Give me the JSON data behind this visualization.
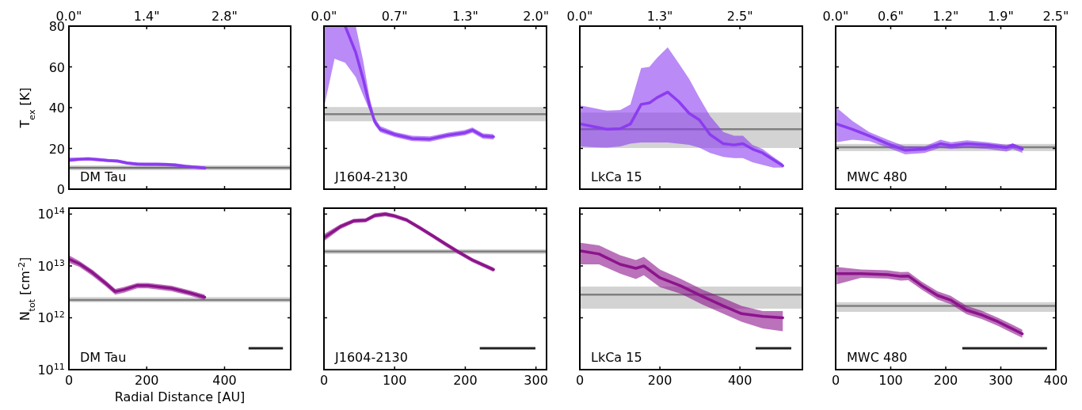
{
  "chart_data": [
    {
      "type": "line",
      "ylabel": "T$_{ex}$ [K]",
      "annotations": [
        "DM Tau"
      ],
      "xlim": [
        0,
        3.99
      ],
      "xticks": [
        {
          "value": 0,
          "label": "0.0\""
        },
        {
          "value": 1.4,
          "label": "1.4\""
        },
        {
          "value": 2.8,
          "label": "2.8\""
        }
      ],
      "ylim": [
        0,
        80
      ],
      "yticks": [
        0,
        20,
        40,
        60,
        80
      ],
      "x": [
        0,
        0.18,
        0.35,
        0.53,
        0.7,
        0.88,
        1.05,
        1.23,
        1.4,
        1.58,
        1.75,
        1.93,
        2.1,
        2.28,
        2.45
      ],
      "series": [
        {
          "color": "#8c3cf0",
          "values": [
            14.3,
            14.7,
            14.9,
            14.5,
            14.1,
            13.8,
            12.8,
            12.3,
            12.2,
            12.2,
            12.1,
            11.8,
            11.2,
            10.8,
            10.4
          ],
          "lower": [
            13.3,
            13.9,
            14.1,
            13.7,
            13.3,
            13.0,
            12.0,
            11.5,
            11.4,
            11.4,
            11.3,
            11.0,
            10.4,
            10.0,
            9.6
          ],
          "upper": [
            15.5,
            15.5,
            15.7,
            15.3,
            14.9,
            14.6,
            13.6,
            13.1,
            13.0,
            13.0,
            12.9,
            12.6,
            12.0,
            11.6,
            11.2
          ]
        }
      ],
      "ref_lines": [
        {
          "axis": "y",
          "value": 10.5,
          "color": "#707070"
        }
      ],
      "bands": [
        {
          "axis": "y",
          "from": 9.3,
          "to": 11.7,
          "color": "#c8c8c8"
        }
      ]
    },
    {
      "type": "line",
      "annotations": [
        "J1604-2130"
      ],
      "xlim": [
        0,
        2.1
      ],
      "xticks": [
        {
          "value": 0,
          "label": "0.0\""
        },
        {
          "value": 0.667,
          "label": "0.7\""
        },
        {
          "value": 1.333,
          "label": "1.3\""
        },
        {
          "value": 2.0,
          "label": "2.0\""
        }
      ],
      "ylim": [
        0,
        80
      ],
      "yticks": [
        {
          "value": 0,
          "label": null
        },
        {
          "value": 20,
          "label": null
        },
        {
          "value": 40,
          "label": null
        },
        {
          "value": 60,
          "label": null
        },
        {
          "value": 80,
          "label": null
        }
      ],
      "tick_labels": "x",
      "x": [
        0,
        0.1,
        0.2,
        0.3,
        0.37,
        0.43,
        0.48,
        0.53,
        0.67,
        0.83,
        1.0,
        1.17,
        1.33,
        1.4,
        1.5,
        1.6
      ],
      "series": [
        {
          "color": "#8c3cf0",
          "values": [
            null,
            null,
            80,
            67,
            54,
            41,
            33,
            29.4,
            26.8,
            24.9,
            24.6,
            26.5,
            27.7,
            29,
            26.1,
            25.7
          ],
          "lower": [
            40,
            64,
            62,
            55,
            46,
            38.6,
            31.5,
            28,
            25.5,
            23.6,
            23.3,
            25.2,
            26.4,
            27.7,
            24.8,
            24.4
          ],
          "upper": [
            80,
            80,
            80,
            80,
            63,
            45,
            35,
            31,
            28.1,
            26.2,
            25.9,
            27.8,
            29,
            30.3,
            27.4,
            27
          ]
        }
      ],
      "ref_lines": [
        {
          "axis": "y",
          "value": 36.8,
          "color": "#808080"
        }
      ],
      "bands": [
        {
          "axis": "y",
          "from": 33.3,
          "to": 40.3,
          "color": "#c8c8c8"
        }
      ]
    },
    {
      "type": "line",
      "annotations": [
        "LkCa 15"
      ],
      "xlim": [
        0,
        3.52
      ],
      "xticks": [
        {
          "value": 0,
          "label": "0.0\""
        },
        {
          "value": 1.266,
          "label": "1.3\""
        },
        {
          "value": 2.532,
          "label": "2.5\""
        }
      ],
      "ylim": [
        0,
        80
      ],
      "yticks": [
        {
          "value": 0,
          "label": null
        },
        {
          "value": 20,
          "label": null
        },
        {
          "value": 40,
          "label": null
        },
        {
          "value": 60,
          "label": null
        },
        {
          "value": 80,
          "label": null
        }
      ],
      "tick_labels": "x",
      "x": [
        0.01,
        0.22,
        0.43,
        0.64,
        0.8,
        0.97,
        1.1,
        1.22,
        1.39,
        1.56,
        1.73,
        1.89,
        2.06,
        2.27,
        2.44,
        2.58,
        2.73,
        2.89,
        3.06,
        3.21
      ],
      "series": [
        {
          "color": "#8c3cf0",
          "values": [
            32,
            30.7,
            29.4,
            29.7,
            32,
            41.6,
            42.3,
            44.9,
            47.6,
            43.1,
            37.2,
            34,
            26.8,
            22.3,
            21.7,
            22.3,
            19.7,
            17.8,
            14.5,
            11.5
          ],
          "lower": [
            21,
            20.6,
            20.4,
            21,
            22.3,
            22.9,
            22.9,
            22.9,
            22.9,
            22.3,
            21.7,
            20.4,
            17.8,
            15.8,
            15.2,
            15.2,
            13.2,
            11.9,
            10.6,
            10.6
          ],
          "upper": [
            41.1,
            39.8,
            38.5,
            38.8,
            41.6,
            59.4,
            60,
            64.4,
            69.6,
            61.9,
            54.1,
            45,
            35.9,
            28.1,
            26.2,
            26.2,
            21.7,
            19.7,
            15.8,
            12.6
          ]
        }
      ],
      "ref_lines": [
        {
          "axis": "y",
          "value": 29.4,
          "color": "#808080"
        }
      ],
      "bands": [
        {
          "axis": "y",
          "from": 20.2,
          "to": 37.6,
          "color": "#c8c8c8"
        }
      ]
    },
    {
      "type": "line",
      "annotations": [
        "MWC 480"
      ],
      "xlim": [
        0,
        2.5
      ],
      "xticks": [
        {
          "value": 0,
          "label": "0.0\""
        },
        {
          "value": 0.625,
          "label": "0.6\""
        },
        {
          "value": 1.25,
          "label": "1.2\""
        },
        {
          "value": 1.875,
          "label": "1.9\""
        },
        {
          "value": 2.5,
          "label": "2.5\""
        }
      ],
      "ylim": [
        0,
        80
      ],
      "yticks": [
        {
          "value": 0,
          "label": null
        },
        {
          "value": 20,
          "label": null
        },
        {
          "value": 40,
          "label": null
        },
        {
          "value": 60,
          "label": null
        },
        {
          "value": 80,
          "label": null
        }
      ],
      "tick_labels": "x",
      "x": [
        0.01,
        0.19,
        0.38,
        0.59,
        0.79,
        1.01,
        1.19,
        1.31,
        1.49,
        1.73,
        1.94,
        2.01,
        2.12
      ],
      "series": [
        {
          "color": "#8c3cf0",
          "values": [
            32,
            29.4,
            26.2,
            22.3,
            19.1,
            19.7,
            22.3,
            21.4,
            22.3,
            21.7,
            20.4,
            21.7,
            19.7
          ],
          "lower": [
            23,
            24.3,
            23.6,
            20.4,
            17.1,
            17.8,
            20.4,
            19.7,
            20.4,
            19.7,
            18.4,
            19.7,
            17.8
          ],
          "upper": [
            40,
            33.5,
            28.1,
            24.3,
            21,
            21,
            24.3,
            23,
            24,
            23,
            21.7,
            22.3,
            21
          ]
        }
      ],
      "ref_lines": [
        {
          "axis": "y",
          "value": 20.6,
          "color": "#808080"
        }
      ],
      "bands": [
        {
          "axis": "y",
          "from": 18.7,
          "to": 22.2,
          "color": "#c8c8c8"
        }
      ]
    },
    {
      "type": "line",
      "xlabel": "Radial Distance [AU]",
      "ylabel": "N$_{tot}$ [cm$^{-2}$]",
      "annotations": [
        "DM Tau"
      ],
      "log": "y",
      "xlim": [
        0,
        570
      ],
      "xticks": [
        0,
        200,
        400
      ],
      "ylim": [
        100000000000.0,
        130000000000000.0
      ],
      "yticks": [
        {
          "value": 100000000000.0,
          "label": "10$^{11}$"
        },
        {
          "value": 1000000000000.0,
          "label": "10$^{12}$"
        },
        {
          "value": 10000000000000.0,
          "label": "10$^{13}$"
        },
        {
          "value": 100000000000000.0,
          "label": "10$^{14}$"
        }
      ],
      "x": [
        0,
        27,
        61,
        95,
        119,
        142,
        176,
        203,
        264,
        312,
        349
      ],
      "series": [
        {
          "color": "#8c148c",
          "values": [
            13500000000000.0,
            11000000000000.0,
            7400000000000.0,
            4600000000000.0,
            3200000000000.0,
            3500000000000.0,
            4200000000000.0,
            4200000000000.0,
            3700000000000.0,
            3000000000000.0,
            2500000000000.0
          ],
          "lower": [
            11500000000000.0,
            9600000000000.0,
            6400000000000.0,
            4000000000000.0,
            2800000000000.0,
            3050000000000.0,
            3700000000000.0,
            3700000000000.0,
            3250000000000.0,
            2650000000000.0,
            2200000000000.0
          ],
          "upper": [
            16000000000000.0,
            12500000000000.0,
            8400000000000.0,
            5200000000000.0,
            3600000000000.0,
            3950000000000.0,
            4700000000000.0,
            4700000000000.0,
            4150000000000.0,
            3350000000000.0,
            2800000000000.0
          ]
        }
      ],
      "ref_lines": [
        {
          "axis": "y",
          "value": 2200000000000.0,
          "color": "#808080"
        }
      ],
      "bands": [
        {
          "axis": "y",
          "from": 2000000000000.0,
          "to": 2500000000000.0,
          "color": "#c8c8c8"
        }
      ]
    },
    {
      "type": "line",
      "annotations": [
        "J1604-2130"
      ],
      "log": "y",
      "xlim": [
        0,
        315
      ],
      "xticks": [
        0,
        100,
        200,
        300
      ],
      "ylim": [
        100000000000.0,
        130000000000000.0
      ],
      "yticks": [
        {
          "value": 100000000000.0,
          "label": null
        },
        {
          "value": 1000000000000.0,
          "label": null
        },
        {
          "value": 10000000000000.0,
          "label": null
        },
        {
          "value": 100000000000000.0,
          "label": null
        }
      ],
      "tick_labels": "x",
      "x": [
        0,
        23,
        42,
        59,
        72,
        87,
        100,
        117,
        136,
        154,
        173,
        192,
        210,
        240
      ],
      "series": [
        {
          "color": "#8c148c",
          "values": [
            35000000000000.0,
            57000000000000.0,
            74000000000000.0,
            76000000000000.0,
            94000000000000.0,
            100000000000000.0,
            92000000000000.0,
            77000000000000.0,
            54000000000000.0,
            38000000000000.0,
            26000000000000.0,
            18000000000000.0,
            13000000000000.0,
            8500000000000.0
          ],
          "lower": [
            30000000000000.0,
            51000000000000.0,
            67000000000000.0,
            69000000000000.0,
            85000000000000.0,
            91000000000000.0,
            84000000000000.0,
            70000000000000.0,
            49000000000000.0,
            34500000000000.0,
            23500000000000.0,
            16300000000000.0,
            11800000000000.0,
            7700000000000.0
          ],
          "upper": [
            41000000000000.0,
            63000000000000.0,
            81000000000000.0,
            83000000000000.0,
            103000000000000.0,
            110000000000000.0,
            100000000000000.0,
            84000000000000.0,
            59000000000000.0,
            41500000000000.0,
            28500000000000.0,
            19700000000000.0,
            14200000000000.0,
            9300000000000.0
          ]
        }
      ],
      "ref_lines": [
        {
          "axis": "y",
          "value": 19000000000000.0,
          "color": "#808080"
        }
      ],
      "bands": [
        {
          "axis": "y",
          "from": 17000000000000.0,
          "to": 21000000000000.0,
          "color": "#c8c8c8"
        }
      ]
    },
    {
      "type": "line",
      "annotations": [
        "LkCa 15"
      ],
      "log": "y",
      "xlim": [
        0,
        556
      ],
      "xticks": [
        0,
        200,
        400
      ],
      "ylim": [
        100000000000.0,
        130000000000000.0
      ],
      "yticks": [
        {
          "value": 100000000000.0,
          "label": null
        },
        {
          "value": 1000000000000.0,
          "label": null
        },
        {
          "value": 10000000000000.0,
          "label": null
        },
        {
          "value": 100000000000000.0,
          "label": null
        }
      ],
      "tick_labels": "x",
      "x": [
        2,
        48,
        101,
        140,
        160,
        200,
        253,
        306,
        358,
        404,
        457,
        507
      ],
      "series": [
        {
          "color": "#8c148c",
          "values": [
            19500000000000.0,
            17000000000000.0,
            10700000000000.0,
            9000000000000.0,
            10000000000000.0,
            5900000000000.0,
            4100000000000.0,
            2600000000000.0,
            1700000000000.0,
            1200000000000.0,
            1060000000000.0,
            1000000000000.0
          ],
          "lower": [
            10700000000000.0,
            10700000000000.0,
            7100000000000.0,
            5600000000000.0,
            6600000000000.0,
            3900000000000.0,
            2900000000000.0,
            1800000000000.0,
            1200000000000.0,
            840000000000.0,
            620000000000.0,
            550000000000.0
          ],
          "upper": [
            28000000000000.0,
            25000000000000.0,
            16000000000000.0,
            13000000000000.0,
            15000000000000.0,
            8500000000000.0,
            5600000000000.0,
            3500000000000.0,
            2400000000000.0,
            1700000000000.0,
            1350000000000.0,
            1350000000000.0
          ]
        }
      ],
      "ref_lines": [
        {
          "axis": "y",
          "value": 2800000000000.0,
          "color": "#808080"
        }
      ],
      "bands": [
        {
          "axis": "y",
          "from": 1500000000000.0,
          "to": 4000000000000.0,
          "color": "#c8c8c8"
        }
      ]
    },
    {
      "type": "line",
      "annotations": [
        "MWC 480"
      ],
      "log": "y",
      "xlim": [
        0,
        400
      ],
      "xticks": [
        0,
        100,
        200,
        300,
        400
      ],
      "ylim": [
        100000000000.0,
        130000000000000.0
      ],
      "yticks": [
        {
          "value": 100000000000.0,
          "label": null
        },
        {
          "value": 1000000000000.0,
          "label": null
        },
        {
          "value": 10000000000000.0,
          "label": null
        },
        {
          "value": 100000000000000.0,
          "label": null
        }
      ],
      "tick_labels": "x",
      "x": [
        2,
        46,
        94,
        118,
        132,
        156,
        185,
        209,
        238,
        266,
        295,
        324,
        339
      ],
      "series": [
        {
          "color": "#8c148c",
          "values": [
            7100000000000.0,
            7100000000000.0,
            6800000000000.0,
            6300000000000.0,
            6400000000000.0,
            4200000000000.0,
            2700000000000.0,
            2200000000000.0,
            1400000000000.0,
            1130000000000.0,
            840000000000.0,
            590000000000.0,
            490000000000.0
          ],
          "lower": [
            4400000000000.0,
            5900000000000.0,
            5700000000000.0,
            5200000000000.0,
            5300000000000.0,
            3500000000000.0,
            2250000000000.0,
            1830000000000.0,
            1170000000000.0,
            940000000000.0,
            700000000000.0,
            490000000000.0,
            410000000000.0
          ],
          "upper": [
            9600000000000.0,
            8500000000000.0,
            8200000000000.0,
            7600000000000.0,
            7700000000000.0,
            5000000000000.0,
            3250000000000.0,
            2650000000000.0,
            1700000000000.0,
            1360000000000.0,
            1000000000000.0,
            710000000000.0,
            590000000000.0
          ]
        }
      ],
      "ref_lines": [
        {
          "axis": "y",
          "value": 1700000000000.0,
          "color": "#808080"
        }
      ],
      "bands": [
        {
          "axis": "y",
          "from": 1300000000000.0,
          "to": 2000000000000.0,
          "color": "#c8c8c8"
        }
      ]
    }
  ]
}
